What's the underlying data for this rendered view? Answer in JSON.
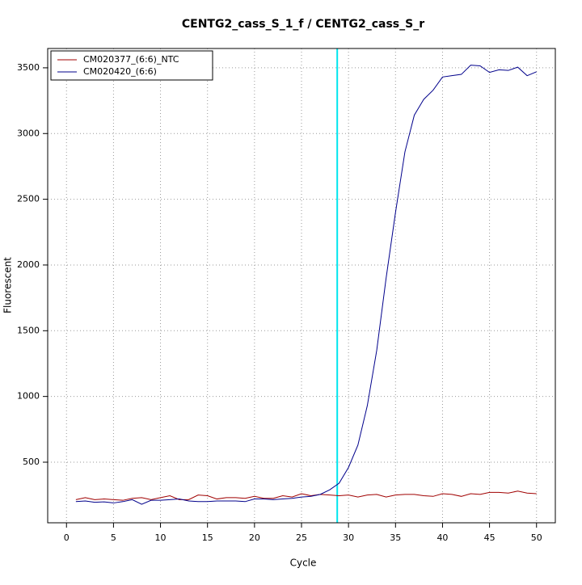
{
  "chart_data": {
    "type": "line",
    "title": "CENTG2_cass_S_1_f / CENTG2_cass_S_r",
    "x_label": "Cycle",
    "y_label": "Fluorescent",
    "x": [
      1,
      2,
      3,
      4,
      5,
      6,
      7,
      8,
      9,
      10,
      11,
      12,
      13,
      14,
      15,
      16,
      17,
      18,
      19,
      20,
      21,
      22,
      23,
      24,
      25,
      26,
      27,
      28,
      29,
      30,
      31,
      32,
      33,
      34,
      35,
      36,
      37,
      38,
      39,
      40,
      41,
      42,
      43,
      44,
      45,
      46,
      47,
      48,
      49,
      50
    ],
    "series": [
      {
        "name": "CM020377_(6:6)_NTC",
        "color": "#a00000",
        "values": [
          215,
          230,
          215,
          220,
          215,
          210,
          225,
          230,
          215,
          230,
          245,
          215,
          215,
          250,
          245,
          220,
          230,
          230,
          225,
          240,
          225,
          225,
          245,
          235,
          260,
          245,
          255,
          250,
          245,
          250,
          235,
          250,
          255,
          235,
          250,
          255,
          255,
          245,
          240,
          260,
          255,
          240,
          260,
          255,
          270,
          270,
          265,
          280,
          265,
          260
        ]
      },
      {
        "name": "CM020420_(6:6)",
        "color": "#00008b",
        "values": [
          200,
          205,
          195,
          198,
          190,
          200,
          215,
          180,
          210,
          210,
          215,
          220,
          205,
          200,
          200,
          205,
          205,
          205,
          200,
          220,
          220,
          215,
          220,
          225,
          235,
          240,
          255,
          290,
          340,
          460,
          630,
          930,
          1350,
          1900,
          2400,
          2860,
          3140,
          3260,
          3330,
          3430,
          3440,
          3450,
          3520,
          3515,
          3465,
          3485,
          3480,
          3505,
          3440,
          3470
        ]
      }
    ],
    "threshold": {
      "x": 28.8,
      "color": "#00e5ee"
    },
    "xlim": [
      -2,
      52
    ],
    "ylim": [
      39,
      3647
    ],
    "xticks": [
      0,
      5,
      10,
      15,
      20,
      25,
      30,
      35,
      40,
      45,
      50
    ],
    "yticks": [
      500,
      1000,
      1500,
      2000,
      2500,
      3000,
      3500
    ],
    "grid": true,
    "legend": "top-left"
  }
}
